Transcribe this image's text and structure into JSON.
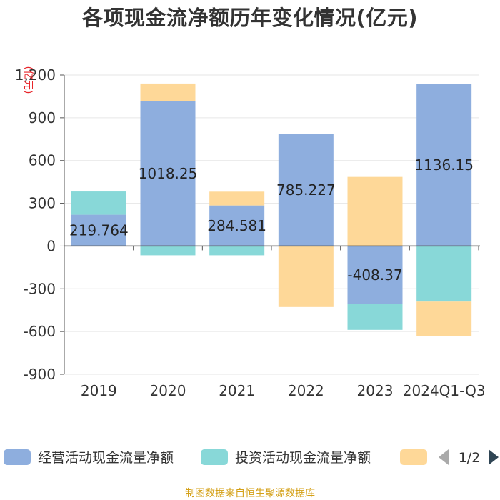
{
  "chart_data": {
    "type": "bar",
    "stacked": true,
    "title": "各项现金流净额历年变化情况(亿元)",
    "unit_label": "(亿元)",
    "categories": [
      "2019",
      "2020",
      "2021",
      "2022",
      "2023",
      "2024Q1-Q3"
    ],
    "ylim": [
      -900,
      1200
    ],
    "yticks": [
      1200,
      900,
      600,
      300,
      0,
      -300,
      -600,
      -900
    ],
    "ytick_labels": [
      "1,200",
      "900",
      "600",
      "300",
      "0",
      "-300",
      "-600",
      "-900"
    ],
    "grid": true,
    "series": [
      {
        "name": "经营活动现金流量净额",
        "color": "#8eaede",
        "values": [
          219.764,
          1018.25,
          284.581,
          785.227,
          -408.37,
          1136.15
        ],
        "labels": [
          "219.764",
          "1018.25",
          "284.581",
          "785.227",
          "-408.37",
          "1136.15"
        ]
      },
      {
        "name": "投资活动现金流量净额",
        "color": "#88d8d8",
        "values": [
          163,
          -65,
          -65,
          0,
          -180,
          -390
        ]
      },
      {
        "name": "",
        "color": "#fed898",
        "values": [
          0,
          122,
          97,
          -428,
          485,
          -240
        ]
      }
    ],
    "legend": {
      "position": "bottom",
      "entries": [
        "经营活动现金流量净额",
        "投资活动现金流量净额",
        ""
      ],
      "page": "1/2"
    }
  },
  "footer": {
    "source": "制图数据来自恒生聚源数据库"
  }
}
